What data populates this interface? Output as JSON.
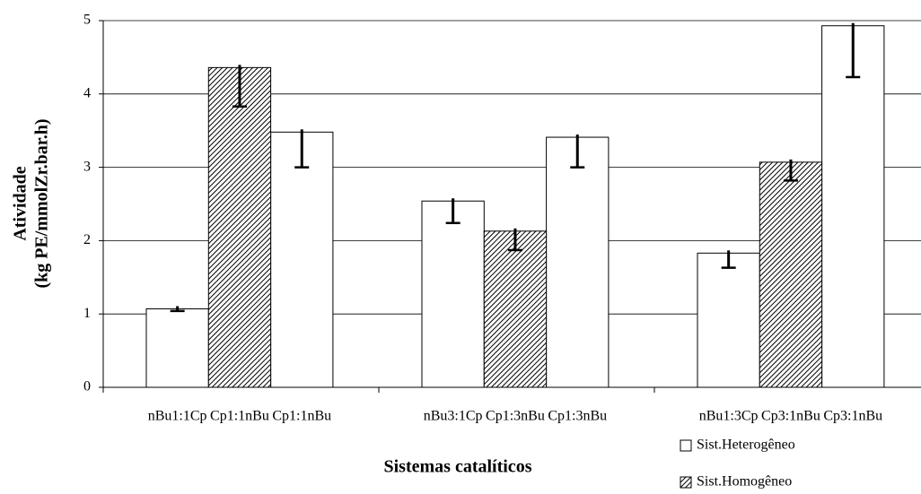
{
  "chart_data": {
    "type": "bar",
    "ylabel": [
      "Atividade",
      "(kg PE/mmolZr.bar.h)"
    ],
    "xlabel": "Sistemas catalíticos",
    "categories": [
      "nBu1:1Cp",
      "Cp1:1nBu",
      "Cp1:1nBu",
      "nBu3:1Cp",
      "Cp1:3nBu",
      "Cp1:3nBu",
      "nBu1:3Cp",
      "Cp3:1nBu",
      "Cp3:1nBu"
    ],
    "series": [
      {
        "name": "Sist.Heterogêneo",
        "color": "#ffffff",
        "pattern": "none",
        "values": [
          1.07,
          null,
          3.48,
          2.54,
          null,
          3.41,
          1.83,
          null,
          4.93
        ],
        "errors": [
          0.03,
          null,
          0.48,
          0.3,
          null,
          0.41,
          0.2,
          null,
          0.7
        ]
      },
      {
        "name": "Sist.Homogêneo",
        "color": "#ffffff",
        "pattern": "hatch",
        "values": [
          null,
          4.36,
          null,
          null,
          2.13,
          null,
          null,
          3.07,
          null
        ],
        "errors": [
          null,
          0.53,
          null,
          null,
          0.26,
          null,
          null,
          0.25,
          null
        ]
      }
    ],
    "ylim": [
      0,
      5
    ],
    "yticks": [
      0,
      1,
      2,
      3,
      4,
      5
    ],
    "grid": true
  }
}
